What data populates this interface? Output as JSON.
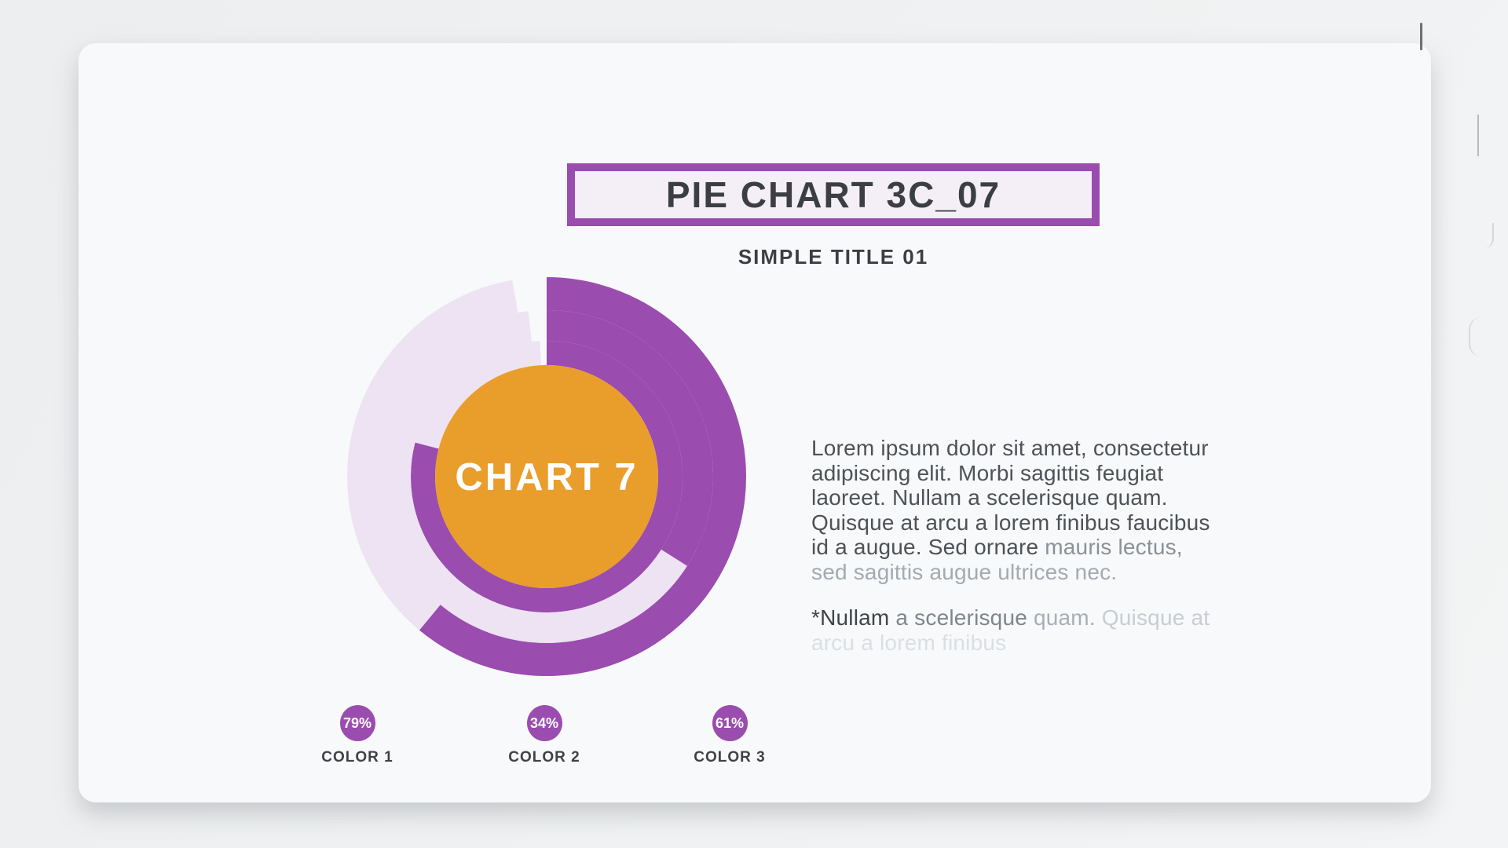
{
  "header": {
    "title": "PIE CHART 3C_07",
    "subtitle": "SIMPLE TITLE 01",
    "accent_color": "#9A4CAF",
    "title_box_fill": "#F4EFF7"
  },
  "chart_data": {
    "type": "pie",
    "variant": "three-ring-donut",
    "center_label": "CHART 7",
    "start_angle_deg": 0,
    "direction": "clockwise",
    "rings": [
      {
        "name": "COLOR 1",
        "value_pct": 79,
        "position": "inner"
      },
      {
        "name": "COLOR 2",
        "value_pct": 34,
        "position": "middle"
      },
      {
        "name": "COLOR 3",
        "value_pct": 61,
        "position": "outer"
      }
    ],
    "colors": {
      "value_arc": "#9A4CAF",
      "remainder_arc": "#EDE3F2",
      "center_circle": "#E99D2B",
      "center_label_text": "#FFFFFF"
    }
  },
  "legend": {
    "items": [
      {
        "percent": "79%",
        "label": "COLOR 1"
      },
      {
        "percent": "34%",
        "label": "COLOR 2"
      },
      {
        "percent": "61%",
        "label": "COLOR 3"
      }
    ]
  },
  "body": {
    "segments": [
      {
        "tone": "dark",
        "text": "Lorem ipsum dolor sit amet, consectetur\nadipiscing elit. Morbi sagittis feugiat\nlaoreet. Nullam a scelerisque quam.\nQuisque at arcu a lorem finibus faucibus\nid a augue. Sed ornare "
      },
      {
        "tone": "mid",
        "text": "mauris lectus,"
      },
      {
        "tone": "light",
        "text": "\nsed sagittis augue ultrices nec."
      }
    ]
  },
  "footnote": {
    "segments": [
      {
        "tone": "dark",
        "text": "*Nullam "
      },
      {
        "tone": "mid",
        "text": "a scelerisque "
      },
      {
        "tone": "light",
        "text": "quam. "
      },
      {
        "tone": "faint",
        "text": "Quisque at"
      },
      {
        "tone": "very-faint",
        "text": "\narcu a lorem finibus"
      }
    ]
  }
}
